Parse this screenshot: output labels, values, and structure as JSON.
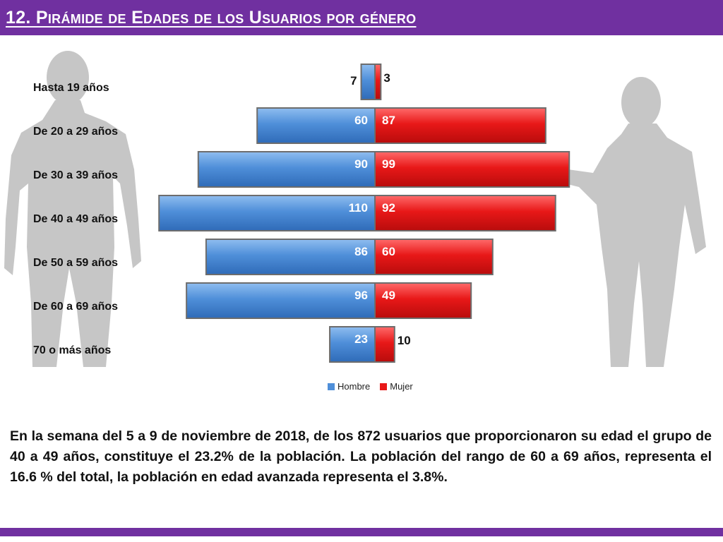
{
  "title": "12. Pirámide de Edades de los Usuarios por género",
  "colors": {
    "accent": "#7030a0",
    "hombre": "#4f8fd9",
    "mujer": "#e81818"
  },
  "chart_data": {
    "type": "bar",
    "orientation": "horizontal-diverging",
    "categories": [
      "Hasta 19 años",
      "De 20 a 29 años",
      "De 30 a 39 años",
      "De 40 a 49 años",
      "De 50 a 59 años",
      "De 60 a 69 años",
      "70 o más años"
    ],
    "series": [
      {
        "name": "Hombre",
        "values": [
          7,
          60,
          90,
          110,
          86,
          96,
          23
        ]
      },
      {
        "name": "Mujer",
        "values": [
          3,
          87,
          99,
          92,
          60,
          49,
          10
        ]
      }
    ],
    "legend_position": "bottom"
  },
  "description": "En la semana del 5 a 9 de noviembre de 2018, de los 872 usuarios  que proporcionaron su edad el grupo de 40 a 49 años, constituye el 23.2% de la población. La población del rango de 60 a 69 años, representa el 16.6 % del total, la población en edad avanzada representa el 3.8%."
}
